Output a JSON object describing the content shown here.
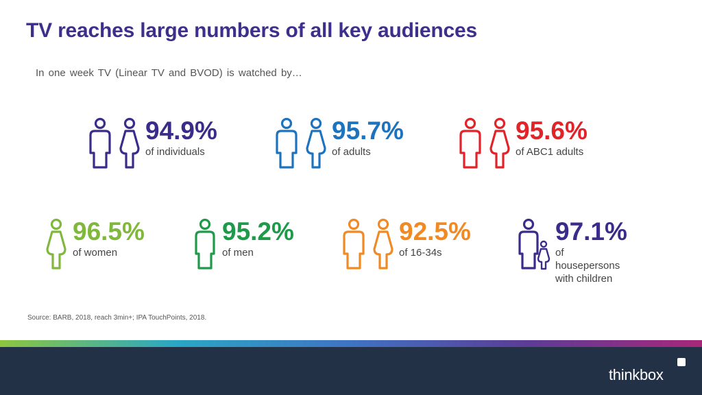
{
  "title": "TV reaches large numbers of all key audiences",
  "subtitle": "In one week TV (Linear TV and BVOD) is watched by…",
  "colors": {
    "title": "#3d2f8c",
    "stripe": [
      "#8dc63f",
      "#2aa7c4",
      "#3f73c4",
      "#5c3c96",
      "#a8277a"
    ],
    "footer": "#223146"
  },
  "stats": [
    {
      "value": "94.9%",
      "label": "of individuals",
      "color": "#3c2c8a",
      "icon": "man-and-woman-icon"
    },
    {
      "value": "95.7%",
      "label": "of adults",
      "color": "#1d73be",
      "icon": "man-and-woman-icon"
    },
    {
      "value": "95.6%",
      "label": "of ABC1 adults",
      "color": "#e1232a",
      "icon": "man-and-woman-icon"
    },
    {
      "value": "96.5%",
      "label": "of women",
      "color": "#80b83d",
      "icon": "woman-icon"
    },
    {
      "value": "95.2%",
      "label": "of men",
      "color": "#1e9a4a",
      "icon": "man-icon"
    },
    {
      "value": "92.5%",
      "label": "of 16-34s",
      "color": "#f08a24",
      "icon": "man-and-woman-icon"
    },
    {
      "value": "97.1%",
      "label": "of housepersons\nwith children",
      "color": "#3c2c8a",
      "icon": "adult-and-child-icon"
    }
  ],
  "source": "Source: BARB, 2018, reach 3min+; IPA TouchPoints, 2018.",
  "brand": "thinkbox"
}
